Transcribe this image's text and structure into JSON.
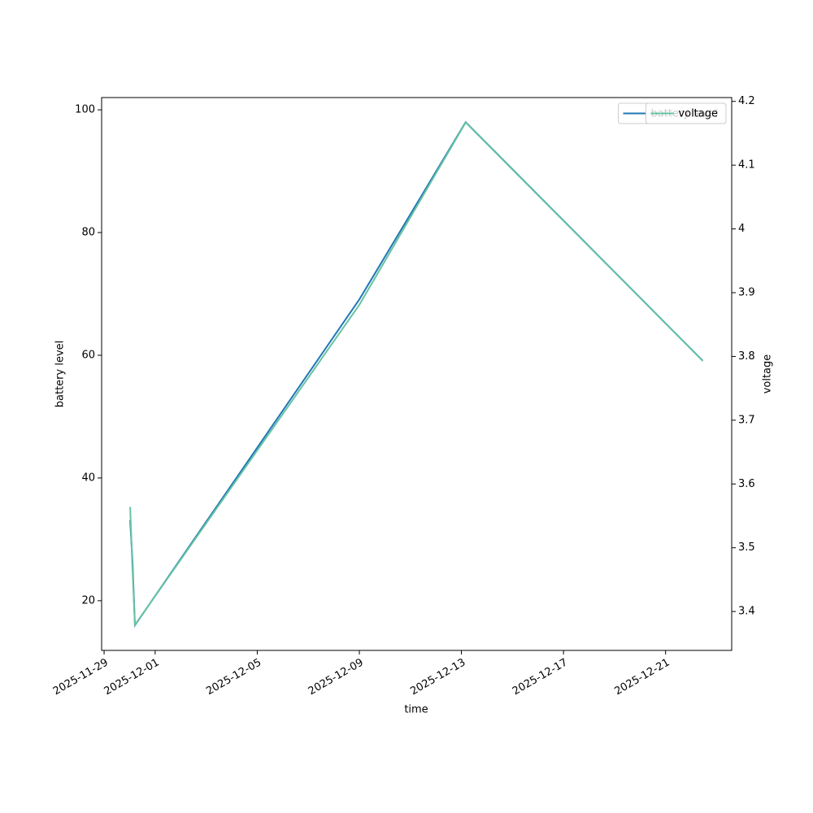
{
  "chart_data": {
    "type": "line",
    "x_label": "time",
    "y_label": "battery level",
    "y2_label": "voltage",
    "x": [
      "2025-11-30T00:30",
      "2025-11-30T02:40",
      "2025-11-30T05:00",
      "2025-12-09T00:00",
      "2025-12-13T04:00",
      "2025-12-22T11:00"
    ],
    "series": [
      {
        "name": "battery level",
        "color": "#1f77b4",
        "values": [
          33.1,
          26.5,
          16.0,
          69.1,
          98.0,
          59.1
        ]
      },
      {
        "name": "voltage",
        "color": "#66c2a5",
        "axis": "y2",
        "values": [
          3.564,
          3.467,
          3.379,
          3.881,
          4.167,
          3.793
        ]
      }
    ],
    "xlim": [
      "2025-11-28T21:40",
      "2025-12-23T14:10"
    ],
    "xticks": [
      "2025-11-29",
      "2025-12-01",
      "2025-12-05",
      "2025-12-09",
      "2025-12-13",
      "2025-12-17",
      "2025-12-21"
    ],
    "ylim": [
      11.9,
      102.0
    ],
    "yticks": [
      20,
      40,
      60,
      80,
      100
    ],
    "y2lim": [
      3.339,
      4.206
    ],
    "y2ticks": [
      3.4,
      3.5,
      3.6,
      3.7,
      3.8,
      3.9,
      4.0,
      4.1,
      4.2
    ],
    "legend": "upper right"
  }
}
